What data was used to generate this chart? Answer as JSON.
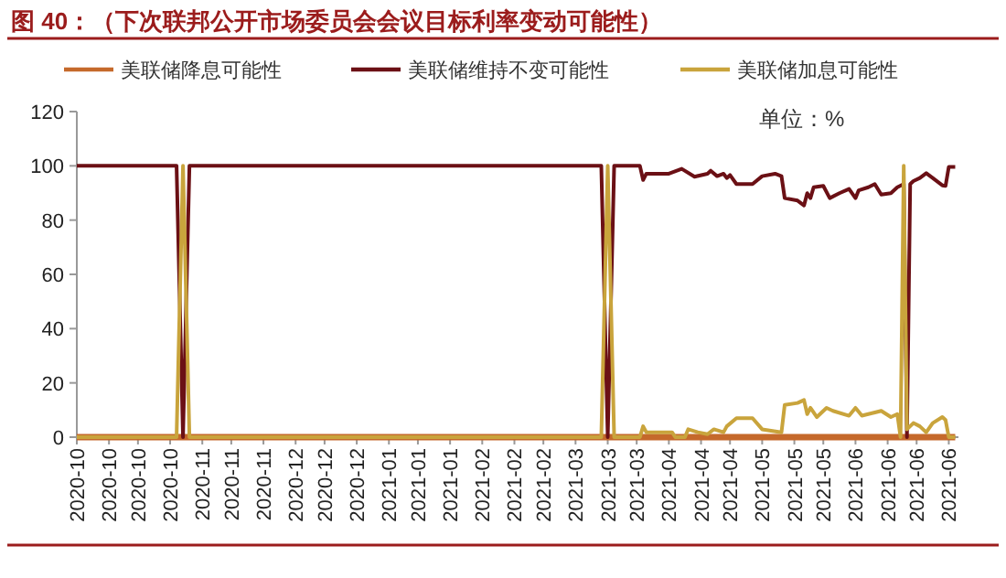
{
  "chart_data": {
    "type": "line",
    "title": "图 40：（下次联邦公开市场委员会会议目标利率变动可能性）",
    "annotations": [
      "单位：%"
    ],
    "legend": "top",
    "grid": false,
    "xlim": [
      "2020-10-02",
      "2021-07-03"
    ],
    "xticks": [
      {
        "value": "2020-10-02",
        "label": "2020-10"
      },
      {
        "value": "2020-10-12",
        "label": "2020-10"
      },
      {
        "value": "2020-10-21",
        "label": "2020-10"
      },
      {
        "value": "2020-10-31",
        "label": "2020-10"
      },
      {
        "value": "2020-11-10",
        "label": "2020-11"
      },
      {
        "value": "2020-11-19",
        "label": "2020-11"
      },
      {
        "value": "2020-11-29",
        "label": "2020-11"
      },
      {
        "value": "2020-12-09",
        "label": "2020-12"
      },
      {
        "value": "2020-12-18",
        "label": "2020-12"
      },
      {
        "value": "2020-12-28",
        "label": "2020-12"
      },
      {
        "value": "2021-01-07",
        "label": "2021-01"
      },
      {
        "value": "2021-01-16",
        "label": "2021-01"
      },
      {
        "value": "2021-01-26",
        "label": "2021-01"
      },
      {
        "value": "2021-02-05",
        "label": "2021-02"
      },
      {
        "value": "2021-02-15",
        "label": "2021-02"
      },
      {
        "value": "2021-02-24",
        "label": "2021-02"
      },
      {
        "value": "2021-03-06",
        "label": "2021-03"
      },
      {
        "value": "2021-03-16",
        "label": "2021-03"
      },
      {
        "value": "2021-03-25",
        "label": "2021-03"
      },
      {
        "value": "2021-04-04",
        "label": "2021-04"
      },
      {
        "value": "2021-04-14",
        "label": "2021-04"
      },
      {
        "value": "2021-04-23",
        "label": "2021-04"
      },
      {
        "value": "2021-05-03",
        "label": "2021-05"
      },
      {
        "value": "2021-05-13",
        "label": "2021-05"
      },
      {
        "value": "2021-05-22",
        "label": "2021-05"
      },
      {
        "value": "2021-06-01",
        "label": "2021-06"
      },
      {
        "value": "2021-06-11",
        "label": "2021-06"
      },
      {
        "value": "2021-06-20",
        "label": "2021-06"
      },
      {
        "value": "2021-06-30",
        "label": "2021-06"
      }
    ],
    "ylim": [
      0,
      120
    ],
    "yticks": [
      0,
      20,
      40,
      60,
      80,
      100,
      120
    ],
    "series": [
      {
        "name": "美联储降息可能性",
        "color": "#c5692b",
        "x": [
          "2020-10-02",
          "2021-01-07",
          "2021-04-14",
          "2021-07-02"
        ],
        "values": [
          0,
          0,
          0,
          0
        ]
      },
      {
        "name": "美联储维持不变可能性",
        "color": "#6b1015",
        "x": [
          "2020-10-02",
          "2020-11-02",
          "2020-11-04",
          "2020-11-06",
          "2021-03-14",
          "2021-03-16",
          "2021-03-18",
          "2021-03-26",
          "2021-03-27",
          "2021-03-28",
          "2021-04-04",
          "2021-04-08",
          "2021-04-12",
          "2021-04-16",
          "2021-04-17",
          "2021-04-19",
          "2021-04-21",
          "2021-04-22",
          "2021-04-23",
          "2021-04-25",
          "2021-04-30",
          "2021-05-03",
          "2021-05-07",
          "2021-05-09",
          "2021-05-10",
          "2021-05-14",
          "2021-05-16",
          "2021-05-17",
          "2021-05-18",
          "2021-05-19",
          "2021-05-22",
          "2021-05-24",
          "2021-05-27",
          "2021-05-30",
          "2021-06-01",
          "2021-06-02",
          "2021-06-05",
          "2021-06-07",
          "2021-06-09",
          "2021-06-12",
          "2021-06-14",
          "2021-06-16",
          "2021-06-17",
          "2021-06-18",
          "2021-06-19",
          "2021-06-21",
          "2021-06-23",
          "2021-06-25",
          "2021-06-28",
          "2021-06-29",
          "2021-06-30",
          "2021-07-02"
        ],
        "values": [
          100,
          100,
          0,
          100,
          100,
          0,
          100,
          100,
          94.8,
          97.1,
          97.1,
          98.9,
          96,
          97.1,
          98.2,
          96.2,
          97.1,
          95.5,
          96.6,
          93.3,
          93.3,
          96.2,
          97.1,
          96.2,
          88.1,
          87.2,
          85.4,
          89.9,
          88.1,
          92.1,
          92.6,
          88.1,
          89.9,
          91.5,
          88.1,
          91,
          92.1,
          93.3,
          89.4,
          89.9,
          92.1,
          93.3,
          0,
          93.3,
          94.4,
          95.5,
          97.3,
          95.5,
          92.8,
          92.6,
          99.6,
          99.6
        ]
      },
      {
        "name": "美联储加息可能性",
        "color": "#c9a43c",
        "x": [
          "2020-10-02",
          "2020-11-02",
          "2020-11-04",
          "2020-11-06",
          "2021-03-14",
          "2021-03-16",
          "2021-03-18",
          "2021-03-26",
          "2021-03-27",
          "2021-03-28",
          "2021-04-05",
          "2021-04-06",
          "2021-04-09",
          "2021-04-10",
          "2021-04-13",
          "2021-04-16",
          "2021-04-18",
          "2021-04-21",
          "2021-04-22",
          "2021-04-25",
          "2021-04-30",
          "2021-05-03",
          "2021-05-09",
          "2021-05-10",
          "2021-05-14",
          "2021-05-16",
          "2021-05-17",
          "2021-05-18",
          "2021-05-20",
          "2021-05-23",
          "2021-05-25",
          "2021-05-30",
          "2021-06-01",
          "2021-06-03",
          "2021-06-09",
          "2021-06-12",
          "2021-06-14",
          "2021-06-15",
          "2021-06-16",
          "2021-06-17",
          "2021-06-19",
          "2021-06-21",
          "2021-06-23",
          "2021-06-25",
          "2021-06-28",
          "2021-06-29",
          "2021-06-30",
          "2021-07-02"
        ],
        "values": [
          0,
          0,
          100,
          0,
          0,
          100,
          0,
          0,
          4,
          1.8,
          1.8,
          0,
          0,
          2.9,
          1.8,
          1.1,
          2.9,
          1.8,
          4,
          7,
          7,
          2.9,
          1.8,
          11.9,
          12.6,
          13.7,
          8.5,
          10.8,
          7.4,
          10.8,
          9.7,
          7.9,
          10.8,
          7.9,
          9.7,
          7.4,
          8.5,
          0,
          100,
          2.9,
          5.2,
          4,
          1.8,
          5.2,
          7.4,
          6.3,
          0,
          0
        ]
      }
    ]
  }
}
